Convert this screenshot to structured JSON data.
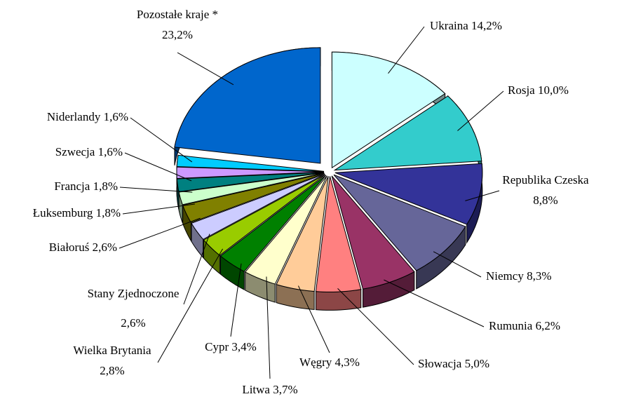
{
  "chart_data": {
    "type": "pie3d",
    "categories": [
      "Ukraina",
      "Rosja",
      "Republika Czeska",
      "Niemcy",
      "Rumunia",
      "Słowacja",
      "Węgry",
      "Litwa",
      "Cypr",
      "Wielka Brytania",
      "Stany Zjednoczone",
      "Białoruś",
      "Łuksemburg",
      "Francja",
      "Szwecja",
      "Niderlandy",
      "Pozostałe kraje *"
    ],
    "values": [
      14.2,
      10.0,
      8.8,
      8.3,
      6.2,
      5.0,
      4.3,
      3.7,
      3.4,
      2.8,
      2.6,
      2.6,
      1.8,
      1.8,
      1.6,
      1.6,
      23.2
    ],
    "value_labels": [
      "14,2%",
      "10,0%",
      "8,8%",
      "8,3%",
      "6,2%",
      "5,0%",
      "4,3%",
      "3,7%",
      "3,4%",
      "2,8%",
      "2,6%",
      "2,6%",
      "1,8%",
      "1,8%",
      "1,6%",
      "1,6%",
      "23,2%"
    ],
    "colors": [
      "#ccffff",
      "#33cccc",
      "#333399",
      "#666699",
      "#993366",
      "#ff8080",
      "#ffcc99",
      "#ffffcc",
      "#008000",
      "#99cc00",
      "#ccccff",
      "#808000",
      "#ccffcc",
      "#008080",
      "#cc99ff",
      "#00ccff",
      "#0066cc"
    ]
  }
}
